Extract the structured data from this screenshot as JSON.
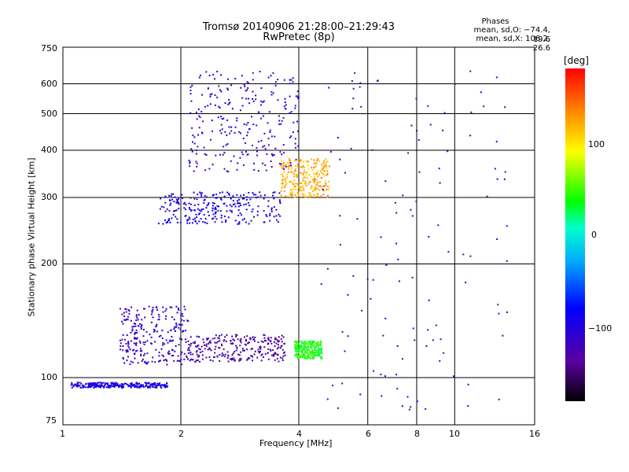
{
  "title_line1": "Tromsø 20140906 21:28:00–21:29:43",
  "title_line2": "RwPretec (8p)",
  "phase_info": {
    "heading": "Phases",
    "line_o": "mean, sd,O: −74.4, 19.6",
    "line_x": "mean, sd,X: 106.2, 26.6"
  },
  "chart_data": {
    "type": "scatter",
    "xlabel": "Frequency [MHz]",
    "ylabel": "Stationary phase Virtual Height [km]",
    "xscale": "log",
    "yscale": "log",
    "xlim": [
      1,
      16
    ],
    "ylim": [
      75,
      750
    ],
    "x_ticks": [
      "1",
      "2",
      "4",
      "6",
      "8",
      "10",
      "16"
    ],
    "y_ticks": [
      "75",
      "100",
      "200",
      "300",
      "400",
      "500",
      "600",
      "750"
    ],
    "grid": true,
    "colorbar": {
      "label": "[deg]",
      "range": [
        -180,
        180
      ],
      "ticks": [
        "100",
        "0",
        "−100"
      ]
    },
    "clusters": [
      {
        "name": "E-layer trace",
        "x_range": [
          1.05,
          1.85
        ],
        "y_range": [
          94,
          97
        ],
        "phase": -95
      },
      {
        "name": "sporadic low trace",
        "x_range": [
          1.4,
          2.1
        ],
        "y_range": [
          108,
          155
        ],
        "phase": -110
      },
      {
        "name": "low trace",
        "x_range": [
          2.1,
          3.7
        ],
        "y_range": [
          110,
          130
        ],
        "phase": -130
      },
      {
        "name": "low trace high freq",
        "x_range": [
          3.9,
          4.6
        ],
        "y_range": [
          112,
          125
        ],
        "phase": 40
      },
      {
        "name": "F-layer O trace",
        "x_range": [
          1.75,
          3.6
        ],
        "y_range": [
          255,
          310
        ],
        "phase": -95
      },
      {
        "name": "F-layer upper",
        "x_range": [
          2.1,
          4.0
        ],
        "y_range": [
          350,
          650
        ],
        "phase": -110
      },
      {
        "name": "F-layer X trace",
        "x_range": [
          3.6,
          4.8
        ],
        "y_range": [
          300,
          380
        ],
        "phase": 120
      },
      {
        "name": "sparse scatter",
        "x_range": [
          4.5,
          14
        ],
        "y_range": [
          80,
          650
        ],
        "phase": -120
      }
    ]
  }
}
